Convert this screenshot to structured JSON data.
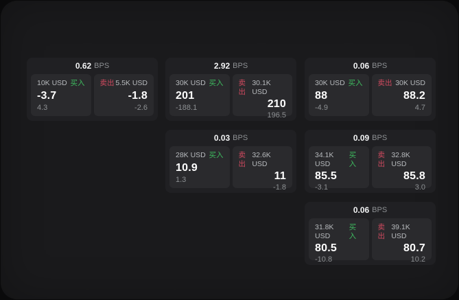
{
  "labels": {
    "buy": "买入",
    "sell": "卖出",
    "bps_unit": "BPS"
  },
  "colors": {
    "buy": "#3eba5f",
    "sell": "#cf4a5f",
    "surface": "#1a1a1c",
    "card": "#202023",
    "panel": "#2a2a2d"
  },
  "cards": [
    {
      "bps": "0.62",
      "buy": {
        "amount": "10K USD",
        "value": "-3.7",
        "change": "4.3"
      },
      "sell": {
        "amount": "5.5K USD",
        "value": "-1.8",
        "change": "-2.6"
      }
    },
    {
      "bps": "2.92",
      "buy": {
        "amount": "30K USD",
        "value": "201",
        "change": "-188.1"
      },
      "sell": {
        "amount": "30.1K USD",
        "value": "210",
        "change": "196.5"
      }
    },
    {
      "bps": "0.06",
      "buy": {
        "amount": "30K USD",
        "value": "88",
        "change": "-4.9"
      },
      "sell": {
        "amount": "30K USD",
        "value": "88.2",
        "change": "4.7"
      }
    },
    {
      "bps": "0.03",
      "buy": {
        "amount": "28K USD",
        "value": "10.9",
        "change": "1.3"
      },
      "sell": {
        "amount": "32.6K USD",
        "value": "11",
        "change": "-1.8"
      }
    },
    {
      "bps": "0.09",
      "buy": {
        "amount": "34.1K USD",
        "value": "85.5",
        "change": "-3.1"
      },
      "sell": {
        "amount": "32.8K USD",
        "value": "85.8",
        "change": "3.0"
      }
    },
    {
      "bps": "0.06",
      "buy": {
        "amount": "31.8K USD",
        "value": "80.5",
        "change": "-10.8"
      },
      "sell": {
        "amount": "39.1K USD",
        "value": "80.7",
        "change": "10.2"
      }
    }
  ]
}
